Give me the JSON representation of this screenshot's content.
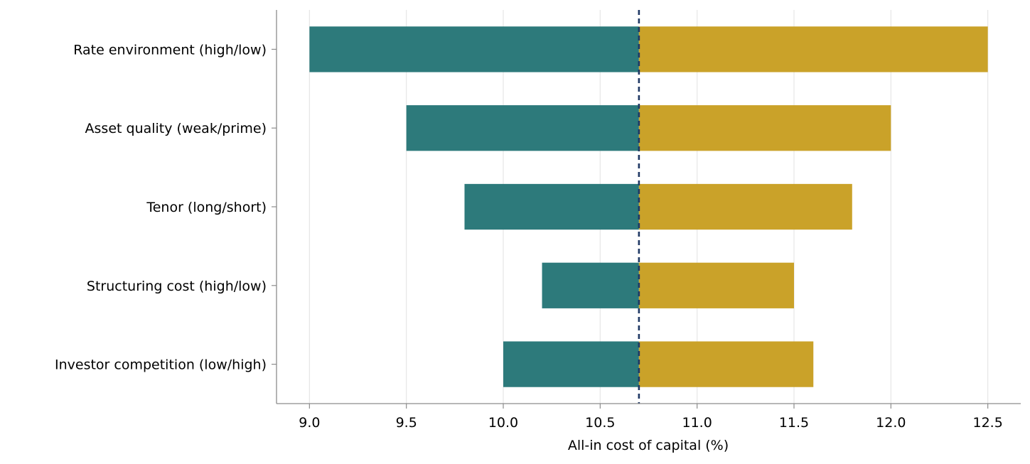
{
  "chart_data": {
    "type": "bar",
    "orientation": "horizontal",
    "variant": "tornado",
    "categories": [
      "Rate environment (high/low)",
      "Asset quality (weak/prime)",
      "Tenor (long/short)",
      "Structuring cost (high/low)",
      "Investor competition (low/high)"
    ],
    "baseline": 10.7,
    "series": [
      {
        "values": [
          9.0,
          9.5,
          9.8,
          10.2,
          10.0
        ],
        "color": "#2d7a7b"
      },
      {
        "values": [
          12.5,
          12.0,
          11.8,
          11.5,
          11.6
        ],
        "color": "#caa229"
      }
    ],
    "title": "",
    "xlabel": "All-in cost of capital (%)",
    "ylabel": "",
    "xlim": [
      8.83,
      12.67
    ],
    "xticks": [
      9.0,
      9.5,
      10.0,
      10.5,
      11.0,
      11.5,
      12.0,
      12.5
    ],
    "xtick_labels": [
      "9.0",
      "9.5",
      "10.0",
      "10.5",
      "11.0",
      "11.5",
      "12.0",
      "12.5"
    ],
    "grid": "vertical",
    "baseline_style": "dashed",
    "baseline_color": "#1f3864",
    "legend": "none"
  }
}
